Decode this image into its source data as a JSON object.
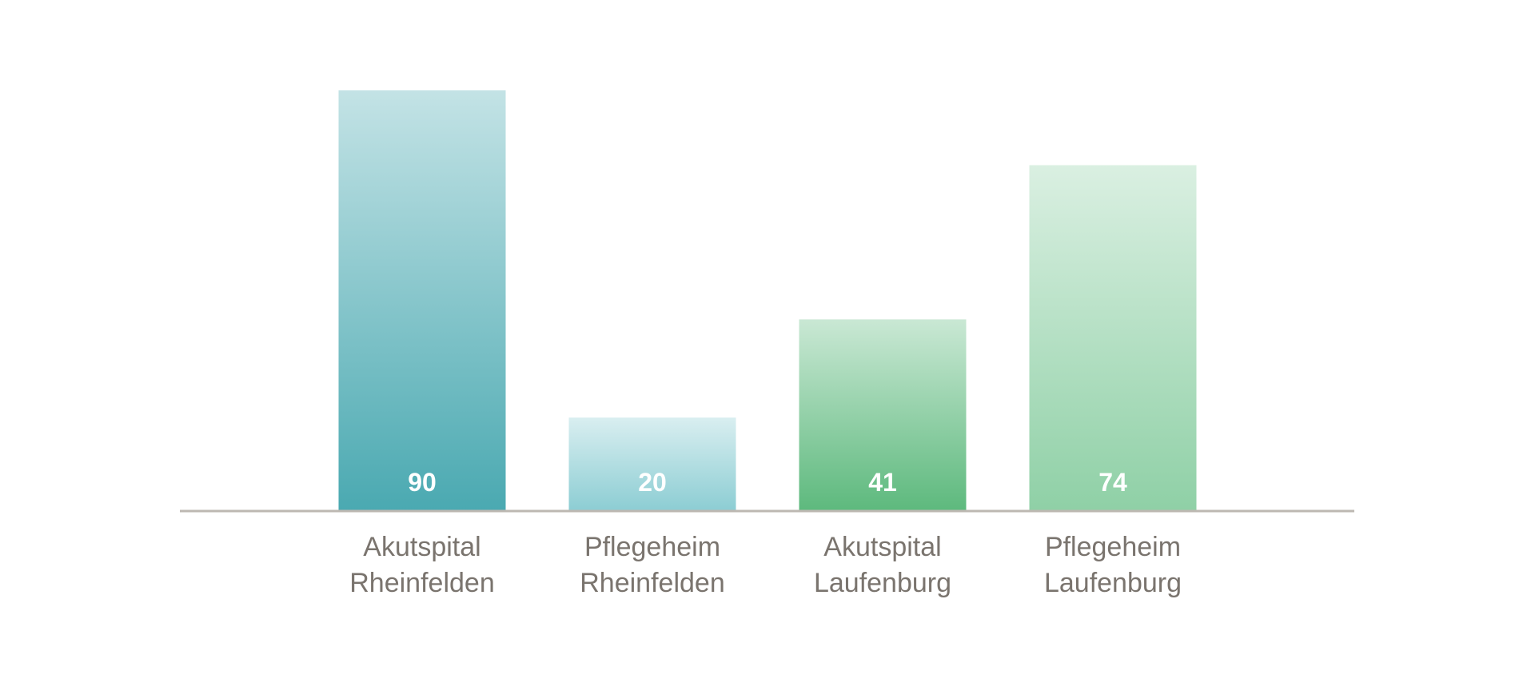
{
  "chart_data": {
    "type": "bar",
    "categories": [
      [
        "Akutspital",
        "Rheinfelden"
      ],
      [
        "Pflegeheim",
        "Rheinfelden"
      ],
      [
        "Akutspital",
        "Laufenburg"
      ],
      [
        "Pflegeheim",
        "Laufenburg"
      ]
    ],
    "values": [
      90,
      20,
      41,
      74
    ],
    "colors": [
      "#4aa9b1",
      "#8ccdd3",
      "#5db97d",
      "#8fd0a6"
    ]
  }
}
